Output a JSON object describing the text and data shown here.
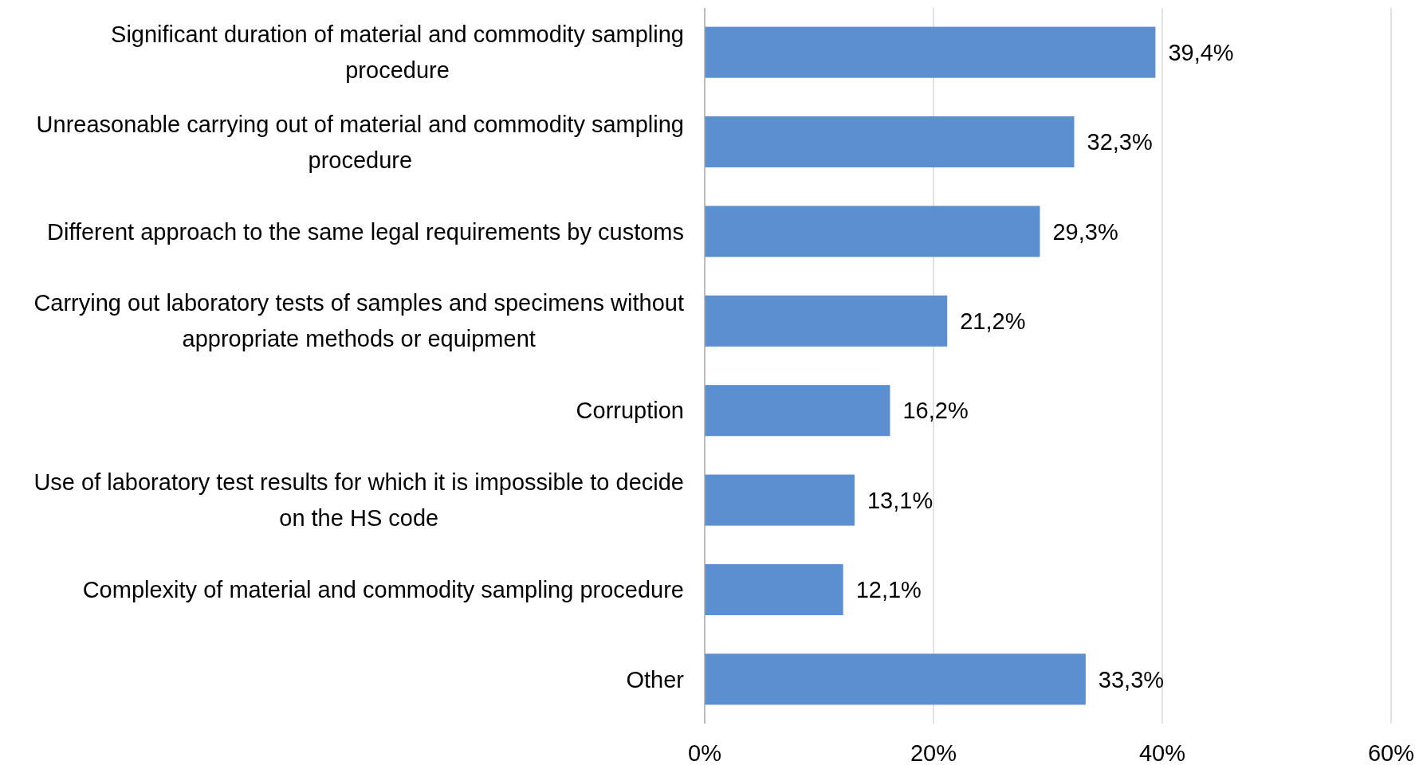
{
  "chart_data": {
    "type": "bar",
    "orientation": "horizontal",
    "categories": [
      "Significant duration of material and commodity sampling procedure",
      "Unreasonable carrying out of material and commodity sampling procedure",
      "Different approach to the same legal requirements by customs",
      "Carrying out laboratory tests of samples and specimens without appropriate methods or equipment",
      "Corruption",
      "Use of laboratory test results for which it is impossible to decide on the HS code",
      "Complexity of material and commodity sampling procedure",
      "Other"
    ],
    "values": [
      39.4,
      32.3,
      29.3,
      21.2,
      16.2,
      13.1,
      12.1,
      33.3
    ],
    "value_labels": [
      "39,4%",
      "32,3%",
      "29,3%",
      "21,2%",
      "16,2%",
      "13,1%",
      "12,1%",
      "33,3%"
    ],
    "color": "#5b8fd0",
    "xlim": [
      0,
      60
    ],
    "xticks": [
      {
        "value": 0,
        "label": "0%"
      },
      {
        "value": 20,
        "label": "20%"
      },
      {
        "value": 40,
        "label": "40%"
      },
      {
        "value": 60,
        "label": "60%"
      }
    ],
    "grid": "x"
  }
}
